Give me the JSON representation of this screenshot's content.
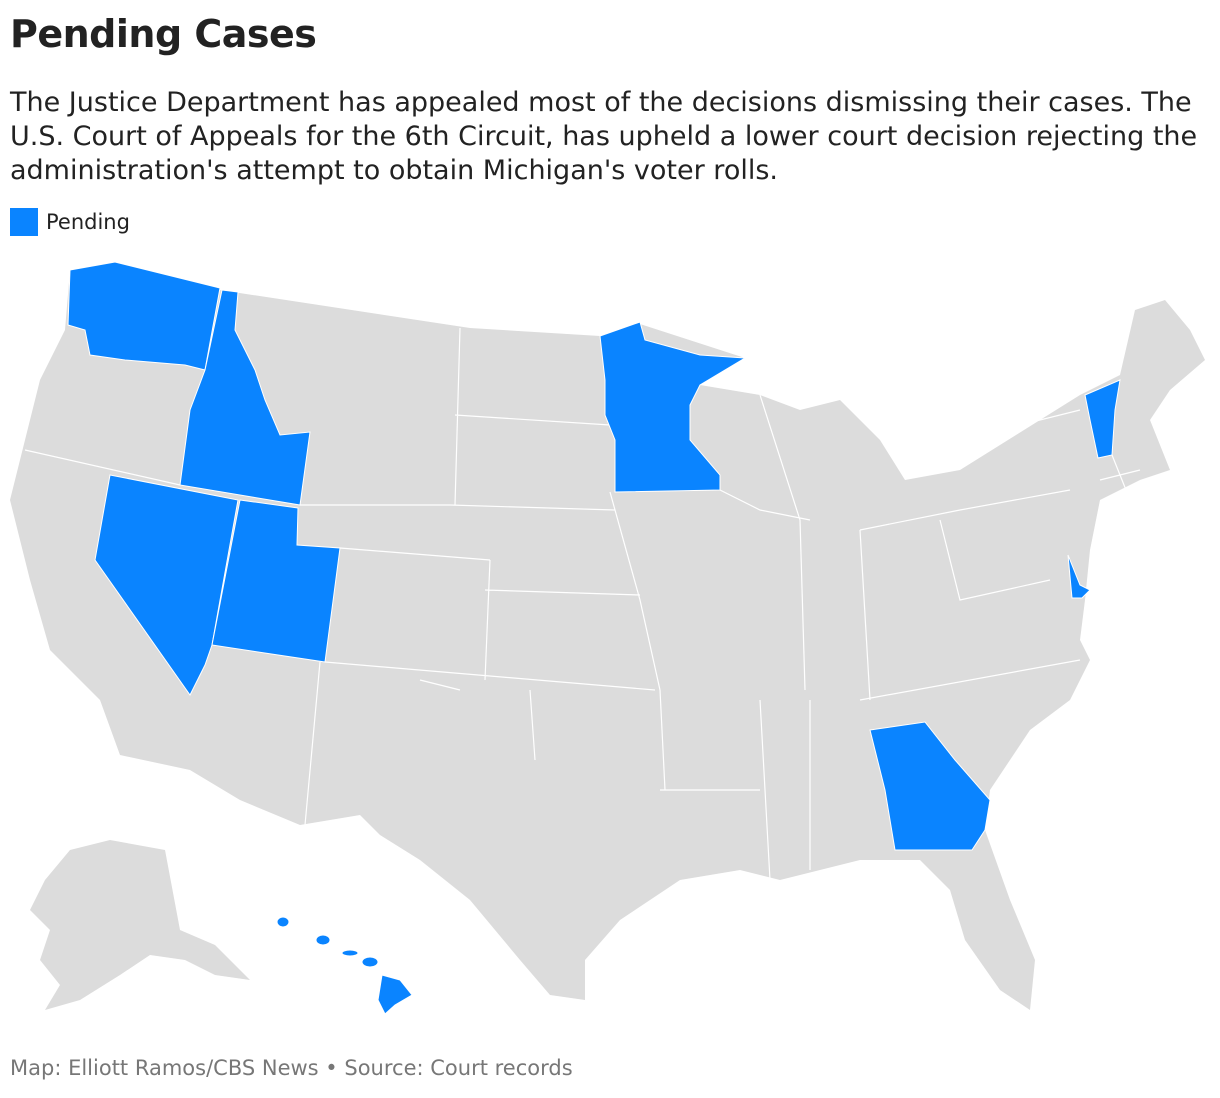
{
  "header": {
    "title": "Pending Cases",
    "subtitle": "The Justice Department has appealed most of the decisions dismissing their cases. The U.S. Court of Appeals for the 6th Circuit, has upheld a lower court decision rejecting the administration's attempt to obtain Michigan's voter rolls."
  },
  "legend": {
    "label": "Pending",
    "color": "#0a84ff"
  },
  "map": {
    "base_color": "#dcdcdc"
  },
  "footer": {
    "credit": "Map: Elliott Ramos/CBS News",
    "separator": "•",
    "source": "Source: Court records"
  }
}
